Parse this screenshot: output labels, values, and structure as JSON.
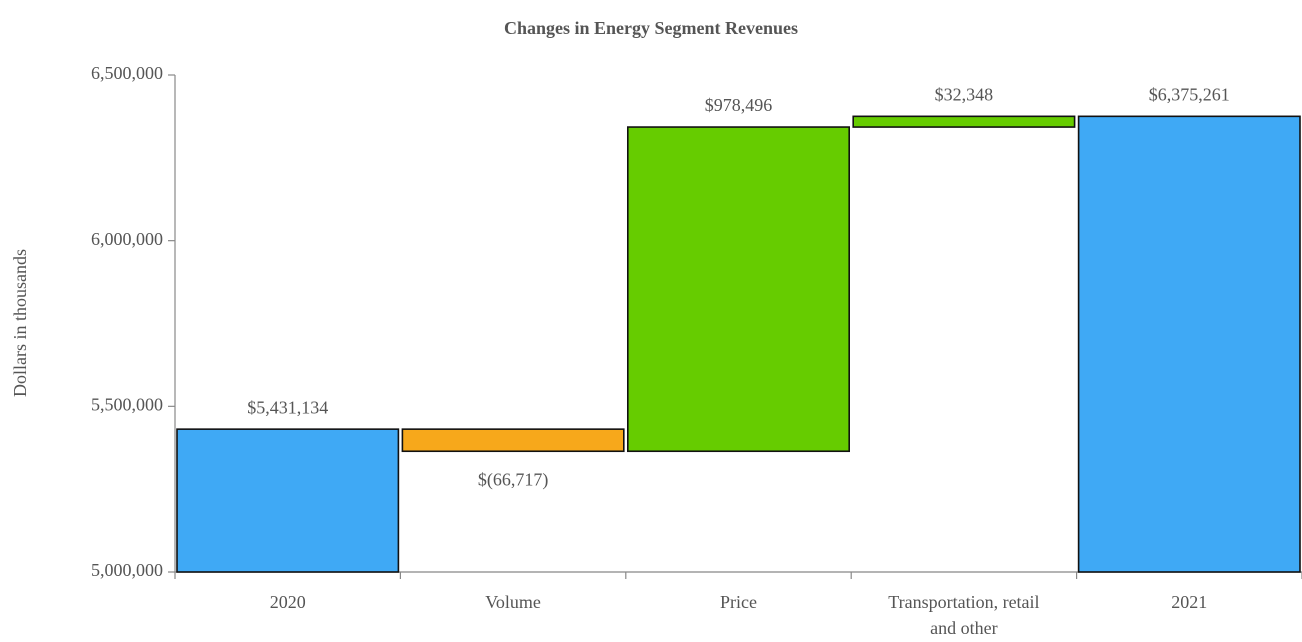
{
  "chart_data": {
    "type": "waterfall",
    "title": "Changes in Energy Segment Revenues",
    "y_label": "Dollars in thousands",
    "categories": [
      "2020",
      "Volume",
      "Price",
      "Transportation, retail and other",
      "2021"
    ],
    "values": [
      5431134,
      -66717,
      978496,
      32348,
      6375261
    ],
    "value_labels": [
      "$5,431,134",
      "$(66,717)",
      "$978,496",
      "$32,348",
      "$6,375,261"
    ],
    "measure": [
      "total",
      "relative",
      "relative",
      "relative",
      "total"
    ],
    "total_color": "#3fa9f5",
    "increase_color": "#66cc00",
    "decrease_color": "#f7a81b",
    "ylim": [
      5000000,
      6500000
    ],
    "yticks": [
      {
        "value": 5000000,
        "label": "5,000,000"
      },
      {
        "value": 5500000,
        "label": "5,500,000"
      },
      {
        "value": 6000000,
        "label": "6,000,000"
      },
      {
        "value": 6500000,
        "label": "6,500,000"
      }
    ],
    "grid": false
  }
}
